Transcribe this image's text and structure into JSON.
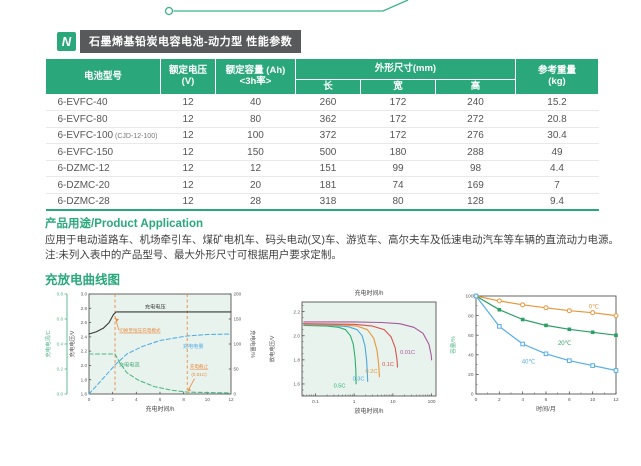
{
  "page": {
    "accent": "#2aa87c",
    "title_bar_bg": "#58595b"
  },
  "header": {
    "logo_text": "N",
    "title": "石墨烯基铅炭电容电池-动力型 性能参数"
  },
  "table": {
    "headers": {
      "model": "电池型号",
      "voltage": "额定电压(V)",
      "capacity_line1": "额定容量 (Ah)",
      "capacity_line2": "<3h率>",
      "dimensions": "外形尺寸(mm)",
      "length": "长",
      "width": "宽",
      "height": "高",
      "weight_line1": "参考重量",
      "weight_line2": "(kg)"
    },
    "rows": [
      {
        "model": "6-EVFC-40",
        "model_note": "",
        "voltage": "12",
        "capacity": "40",
        "length": "260",
        "width": "172",
        "height": "240",
        "weight": "15.2"
      },
      {
        "model": "6-EVFC-80",
        "model_note": "",
        "voltage": "12",
        "capacity": "80",
        "length": "362",
        "width": "172",
        "height": "272",
        "weight": "20.8"
      },
      {
        "model": "6-EVFC-100",
        "model_note": "(CJD-12-100)",
        "voltage": "12",
        "capacity": "100",
        "length": "372",
        "width": "172",
        "height": "276",
        "weight": "30.4"
      },
      {
        "model": "6-EVFC-150",
        "model_note": "",
        "voltage": "12",
        "capacity": "150",
        "length": "500",
        "width": "180",
        "height": "288",
        "weight": "49"
      },
      {
        "model": "6-DZMC-12",
        "model_note": "",
        "voltage": "12",
        "capacity": "12",
        "length": "151",
        "width": "99",
        "height": "98",
        "weight": "4.4"
      },
      {
        "model": "6-DZMC-20",
        "model_note": "",
        "voltage": "12",
        "capacity": "20",
        "length": "181",
        "width": "74",
        "height": "169",
        "weight": "7"
      },
      {
        "model": "6-DZMC-28",
        "model_note": "",
        "voltage": "12",
        "capacity": "28",
        "length": "318",
        "width": "80",
        "height": "128",
        "weight": "9.4"
      }
    ]
  },
  "application": {
    "heading": "产品用途/Product Application",
    "line1": "应用于电动道路车、机场牵引车、煤矿电机车、码头电动(叉)车、游览车、高尔夫车及低速电动汽车等车辆的直流动力电源。",
    "line2": "注:未列入表中的产品型号、最大外形尺寸可根据用户要求定制。"
  },
  "curves_section": {
    "heading": "充放电曲线图"
  },
  "chart_data": [
    {
      "id": "charge-chart",
      "type": "line",
      "xlabel": "充电时间/h",
      "xlim": [
        0,
        12
      ],
      "x_ticks": [
        0,
        2,
        4,
        6,
        8,
        10,
        12
      ],
      "axes": {
        "current": {
          "label": "充电电流/C",
          "lim": [
            0,
            0.8
          ],
          "ticks": [
            "0.0",
            "0.2",
            "0.4",
            "0.6",
            "0.8"
          ],
          "tick_vals": [
            0,
            0.2,
            0.4,
            0.6,
            0.8
          ],
          "color": "#52b788"
        },
        "voltage": {
          "label": "充电电压/V",
          "lim": [
            1.6,
            3.0
          ],
          "ticks": [
            "1.6",
            "1.8",
            "2.0",
            "2.2",
            "2.4",
            "2.6",
            "2.8",
            "3.0"
          ],
          "tick_vals": [
            1.6,
            1.8,
            2.0,
            2.2,
            2.4,
            2.6,
            2.8,
            3.0
          ],
          "color": "#555555"
        },
        "quantity": {
          "label": "充电电量/%",
          "lim": [
            0,
            200
          ],
          "ticks": [
            "0",
            "50",
            "100",
            "150",
            "200"
          ],
          "tick_vals": [
            0,
            50,
            100,
            150,
            200
          ],
          "color": "#555555"
        }
      },
      "plot_bg": "#e7f3ec",
      "vlines": [
        2.2,
        8.3
      ],
      "vline_color": "#ed8a3f",
      "series": [
        {
          "name": "充电电压",
          "axis": "voltage",
          "color": "#3a3a3a",
          "dash": "",
          "points": [
            [
              0,
              2.44
            ],
            [
              0.6,
              2.47
            ],
            [
              1.2,
              2.52
            ],
            [
              1.7,
              2.6
            ],
            [
              2.05,
              2.71
            ],
            [
              2.3,
              2.75
            ],
            [
              12,
              2.75
            ]
          ]
        },
        {
          "name": "充电电流",
          "axis": "current",
          "color": "#52b788",
          "dash": "4 2.5",
          "points": [
            [
              0,
              0.32
            ],
            [
              2.2,
              0.32
            ],
            [
              2.6,
              0.25
            ],
            [
              3.2,
              0.17
            ],
            [
              4.2,
              0.11
            ],
            [
              5.5,
              0.06
            ],
            [
              7,
              0.03
            ],
            [
              8.3,
              0.015
            ],
            [
              12,
              0.008
            ]
          ]
        },
        {
          "name": "充电电量",
          "axis": "quantity",
          "color": "#56aee8",
          "dash": "4 2.5",
          "points": [
            [
              0,
              0
            ],
            [
              1,
              26
            ],
            [
              2.2,
              58
            ],
            [
              3.2,
              80
            ],
            [
              4.5,
              95
            ],
            [
              6,
              107
            ],
            [
              7.5,
              113
            ],
            [
              8.3,
              116
            ],
            [
              10,
              119
            ],
            [
              12,
              120
            ]
          ]
        }
      ],
      "annotations": {
        "voltage_label": {
          "text": "充电电压",
          "color": "#3a3a3a"
        },
        "cv_switch": {
          "text": "切换至恒压充电模式",
          "color": "#ed8a3f"
        },
        "quantity_label": {
          "text": "充电电量",
          "color": "#56aee8"
        },
        "current_label": {
          "text": "充电电流",
          "color": "#43a875"
        },
        "cutoff_line1": {
          "text": "充电截止",
          "color": "#ed8a3f"
        },
        "cutoff_line2": {
          "text": "(0.01C)",
          "color": "#ed8a3f"
        }
      }
    },
    {
      "id": "discharge-chart",
      "type": "line-logx",
      "title": "充电时间/h",
      "xlabel": "放电时间/h",
      "ylabel": "放电电压/V",
      "xlim": [
        0.045,
        130
      ],
      "x_ticks": [
        0.1,
        1,
        10,
        100
      ],
      "x_tick_labels": [
        "0.1",
        "1",
        "10",
        "100"
      ],
      "ylim": [
        1.5,
        2.28
      ],
      "y_ticks": [
        1.6,
        1.8,
        2.0,
        2.2
      ],
      "y_tick_labels": [
        "1.6",
        "1.8",
        "2.0",
        "2.2"
      ],
      "plot_bg": "#e7f3ec",
      "series": [
        {
          "name": "0.5C",
          "color": "#2eaf6e",
          "points": [
            [
              0.05,
              2.085
            ],
            [
              0.2,
              2.08
            ],
            [
              0.4,
              2.07
            ],
            [
              0.6,
              2.05
            ],
            [
              0.8,
              2.0
            ],
            [
              0.95,
              1.93
            ],
            [
              1.05,
              1.82
            ],
            [
              1.1,
              1.72
            ],
            [
              1.12,
              1.6
            ]
          ],
          "label_at": [
            0.42,
            1.57
          ]
        },
        {
          "name": "0.3C",
          "color": "#4aa8e0",
          "points": [
            [
              0.05,
              2.09
            ],
            [
              0.3,
              2.085
            ],
            [
              0.7,
              2.075
            ],
            [
              1.2,
              2.05
            ],
            [
              1.6,
              2.0
            ],
            [
              1.9,
              1.92
            ],
            [
              2.1,
              1.8
            ],
            [
              2.2,
              1.68
            ],
            [
              2.24,
              1.62
            ]
          ],
          "label_at": [
            1.3,
            1.63
          ]
        },
        {
          "name": "0.2C",
          "color": "#e9963a",
          "points": [
            [
              0.05,
              2.095
            ],
            [
              0.5,
              2.09
            ],
            [
              1.2,
              2.08
            ],
            [
              2.2,
              2.05
            ],
            [
              3.2,
              1.98
            ],
            [
              3.9,
              1.88
            ],
            [
              4.3,
              1.76
            ],
            [
              4.5,
              1.66
            ]
          ],
          "label_at": [
            2.8,
            1.69
          ]
        },
        {
          "name": "0.1C",
          "color": "#d9534f",
          "points": [
            [
              0.05,
              2.1
            ],
            [
              1,
              2.095
            ],
            [
              3,
              2.08
            ],
            [
              6,
              2.05
            ],
            [
              9,
              1.99
            ],
            [
              11.5,
              1.9
            ],
            [
              12.8,
              1.8
            ],
            [
              13.2,
              1.74
            ]
          ],
          "label_at": [
            7.5,
            1.75
          ]
        },
        {
          "name": "0.01C",
          "color": "#a8579d",
          "points": [
            [
              0.05,
              2.115
            ],
            [
              1,
              2.115
            ],
            [
              5,
              2.11
            ],
            [
              15,
              2.1
            ],
            [
              35,
              2.07
            ],
            [
              60,
              2.02
            ],
            [
              85,
              1.93
            ],
            [
              98,
              1.84
            ],
            [
              100,
              1.8
            ]
          ],
          "label_at": [
            24,
            1.85
          ]
        }
      ]
    },
    {
      "id": "retention-chart",
      "type": "line-markers",
      "xlabel": "时间/月",
      "ylabel": "容量/%",
      "ylabel_color": "#52b788",
      "xlim": [
        0,
        12
      ],
      "x_ticks": [
        0,
        2,
        4,
        6,
        8,
        10,
        12
      ],
      "ylim": [
        0,
        100
      ],
      "y_ticks": [
        0,
        20,
        40,
        60,
        80,
        100
      ],
      "plot_bg": "#ffffff",
      "x": [
        0,
        2,
        4,
        6,
        8,
        10,
        12
      ],
      "series": [
        {
          "name": "0℃",
          "color": "#e9963a",
          "marker": "circle-open",
          "values": [
            100,
            95,
            91,
            88,
            85,
            83,
            80
          ],
          "label_at": [
            10.1,
            87
          ]
        },
        {
          "name": "20℃",
          "color": "#2b9e63",
          "marker": "square-filled",
          "values": [
            100,
            86,
            76,
            70,
            66,
            63,
            60
          ],
          "label_at": [
            7.6,
            50
          ]
        },
        {
          "name": "40℃",
          "color": "#56aee8",
          "marker": "square-open",
          "values": [
            100,
            69,
            51,
            41,
            34,
            29,
            24
          ],
          "label_at": [
            4.5,
            31
          ]
        }
      ]
    }
  ]
}
